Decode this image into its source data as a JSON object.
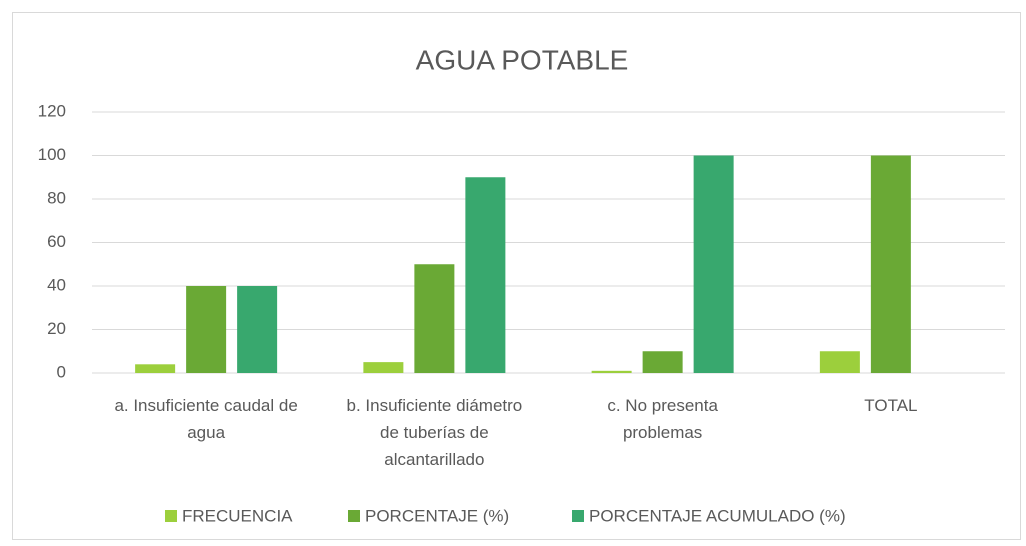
{
  "chart_data": {
    "type": "bar",
    "title": "AGUA POTABLE",
    "categories": [
      "a. Insuficiente caudal de agua",
      "b. Insuficiente diámetro de tuberías de alcantarillado",
      "c. No presenta problemas",
      "TOTAL"
    ],
    "series": [
      {
        "name": "FRECUENCIA",
        "color": "#9ccf3c",
        "values": [
          4,
          5,
          1,
          10
        ]
      },
      {
        "name": "PORCENTAJE (%)",
        "color": "#6aa935",
        "values": [
          40,
          50,
          10,
          100
        ]
      },
      {
        "name": "PORCENTAJE ACUMULADO (%)",
        "color": "#38a86e",
        "values": [
          40,
          90,
          100,
          null
        ]
      }
    ],
    "ylim": [
      0,
      120
    ],
    "yticks": [
      0,
      20,
      40,
      60,
      80,
      100,
      120
    ],
    "grid": true,
    "legend": "bottom"
  }
}
